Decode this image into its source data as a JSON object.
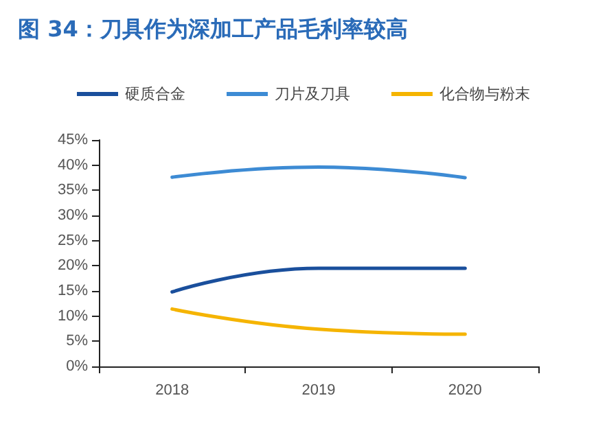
{
  "chart_data": {
    "type": "line",
    "title": "图 34：刀具作为深加工产品毛利率较高",
    "categories": [
      "2018",
      "2019",
      "2020"
    ],
    "series": [
      {
        "name": "硬质合金",
        "color": "#1a4f9c",
        "values": [
          14.8,
          19.5,
          19.5
        ]
      },
      {
        "name": "刀片及刀具",
        "color": "#3d8bd4",
        "values": [
          37.6,
          39.6,
          37.5
        ]
      },
      {
        "name": "化合物与粉末",
        "color": "#f5b400",
        "values": [
          11.4,
          7.4,
          6.4
        ]
      }
    ],
    "ylim": [
      0,
      45
    ],
    "yticks": [
      {
        "value": 0,
        "label": "0%"
      },
      {
        "value": 5,
        "label": "5%"
      },
      {
        "value": 10,
        "label": "10%"
      },
      {
        "value": 15,
        "label": "15%"
      },
      {
        "value": 20,
        "label": "20%"
      },
      {
        "value": 25,
        "label": "25%"
      },
      {
        "value": 30,
        "label": "30%"
      },
      {
        "value": 35,
        "label": "35%"
      },
      {
        "value": 40,
        "label": "40%"
      },
      {
        "value": 45,
        "label": "45%"
      }
    ],
    "grid": false,
    "legend": "top",
    "marker": "none",
    "line_style": "solid"
  }
}
